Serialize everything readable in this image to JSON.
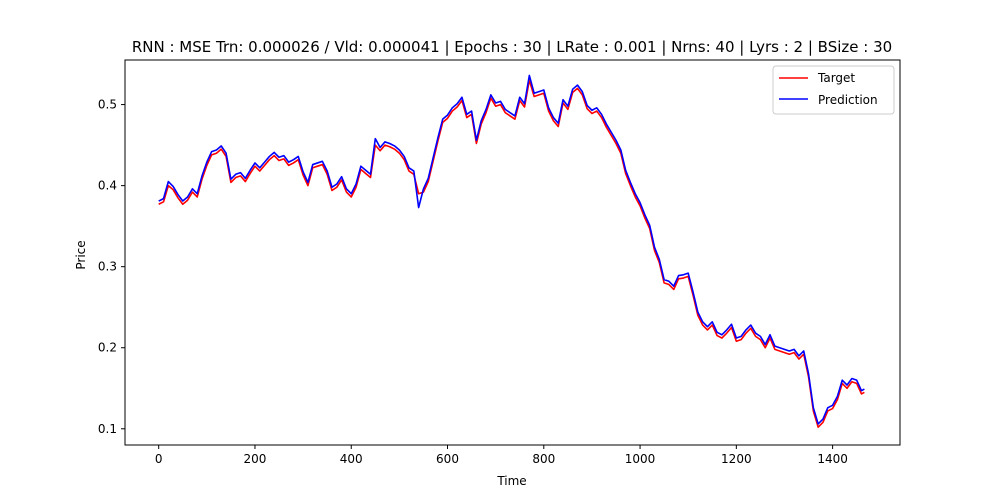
{
  "chart_data": {
    "type": "line",
    "title": "RNN : MSE  Trn: 0.000026 / Vld: 0.000041 | Epochs : 30 | LRate : 0.001 | Nrns: 40 | Lyrs : 2 | BSize : 30",
    "xlabel": "Time",
    "ylabel": "Price",
    "xlim": [
      -70,
      1540
    ],
    "ylim": [
      0.08,
      0.555
    ],
    "xticks": [
      0,
      200,
      400,
      600,
      800,
      1000,
      1200,
      1400
    ],
    "yticks": [
      0.1,
      0.2,
      0.3,
      0.4,
      0.5
    ],
    "ytick_labels": [
      "0.1",
      "0.2",
      "0.3",
      "0.4",
      "0.5"
    ],
    "grid": false,
    "legend_position": "top-right",
    "series": [
      {
        "name": "Target",
        "color": "#ff0000",
        "x": [
          0,
          10,
          20,
          30,
          40,
          50,
          60,
          70,
          80,
          90,
          100,
          110,
          120,
          130,
          140,
          150,
          160,
          170,
          180,
          190,
          200,
          210,
          220,
          230,
          240,
          250,
          260,
          270,
          280,
          290,
          300,
          310,
          320,
          330,
          340,
          350,
          360,
          370,
          380,
          390,
          400,
          410,
          420,
          430,
          440,
          450,
          460,
          470,
          480,
          490,
          500,
          510,
          520,
          530,
          540,
          550,
          560,
          570,
          580,
          590,
          600,
          610,
          620,
          630,
          640,
          650,
          660,
          670,
          680,
          690,
          700,
          710,
          720,
          730,
          740,
          750,
          760,
          770,
          780,
          790,
          800,
          810,
          820,
          830,
          840,
          850,
          860,
          870,
          880,
          890,
          900,
          910,
          920,
          930,
          940,
          950,
          960,
          970,
          980,
          990,
          1000,
          1010,
          1020,
          1030,
          1040,
          1050,
          1060,
          1070,
          1080,
          1090,
          1100,
          1110,
          1120,
          1130,
          1140,
          1150,
          1160,
          1170,
          1180,
          1190,
          1200,
          1210,
          1220,
          1230,
          1240,
          1250,
          1260,
          1270,
          1280,
          1290,
          1300,
          1310,
          1320,
          1330,
          1340,
          1350,
          1360,
          1370,
          1380,
          1390,
          1400,
          1410,
          1420,
          1430,
          1440,
          1450,
          1460,
          1466
        ],
        "values": [
          0.377,
          0.38,
          0.4,
          0.395,
          0.385,
          0.377,
          0.382,
          0.392,
          0.386,
          0.408,
          0.425,
          0.438,
          0.44,
          0.445,
          0.436,
          0.404,
          0.41,
          0.412,
          0.405,
          0.415,
          0.424,
          0.418,
          0.425,
          0.432,
          0.437,
          0.431,
          0.433,
          0.425,
          0.428,
          0.432,
          0.413,
          0.4,
          0.422,
          0.424,
          0.426,
          0.414,
          0.394,
          0.398,
          0.407,
          0.392,
          0.386,
          0.398,
          0.42,
          0.415,
          0.41,
          0.45,
          0.443,
          0.45,
          0.448,
          0.445,
          0.44,
          0.432,
          0.418,
          0.414,
          0.39,
          0.392,
          0.405,
          0.43,
          0.455,
          0.478,
          0.483,
          0.492,
          0.497,
          0.505,
          0.484,
          0.488,
          0.452,
          0.476,
          0.49,
          0.508,
          0.498,
          0.5,
          0.49,
          0.486,
          0.482,
          0.505,
          0.497,
          0.53,
          0.51,
          0.512,
          0.514,
          0.492,
          0.48,
          0.473,
          0.502,
          0.494,
          0.515,
          0.52,
          0.512,
          0.495,
          0.489,
          0.492,
          0.484,
          0.472,
          0.462,
          0.452,
          0.44,
          0.415,
          0.4,
          0.386,
          0.375,
          0.36,
          0.347,
          0.32,
          0.305,
          0.28,
          0.278,
          0.272,
          0.285,
          0.286,
          0.288,
          0.265,
          0.24,
          0.228,
          0.222,
          0.228,
          0.215,
          0.212,
          0.218,
          0.225,
          0.208,
          0.21,
          0.218,
          0.224,
          0.214,
          0.21,
          0.2,
          0.212,
          0.198,
          0.196,
          0.194,
          0.192,
          0.194,
          0.186,
          0.192,
          0.164,
          0.122,
          0.102,
          0.108,
          0.122,
          0.125,
          0.136,
          0.156,
          0.15,
          0.158,
          0.156,
          0.143,
          0.145
        ],
        "offset": 0
      },
      {
        "name": "Prediction",
        "color": "#0000ff",
        "x": [
          0,
          10,
          20,
          30,
          40,
          50,
          60,
          70,
          80,
          90,
          100,
          110,
          120,
          130,
          140,
          150,
          160,
          170,
          180,
          190,
          200,
          210,
          220,
          230,
          240,
          250,
          260,
          270,
          280,
          290,
          300,
          310,
          320,
          330,
          340,
          350,
          360,
          370,
          380,
          390,
          400,
          410,
          420,
          430,
          440,
          450,
          460,
          470,
          480,
          490,
          500,
          510,
          520,
          530,
          540,
          550,
          560,
          570,
          580,
          590,
          600,
          610,
          620,
          630,
          640,
          650,
          660,
          670,
          680,
          690,
          700,
          710,
          720,
          730,
          740,
          750,
          760,
          770,
          780,
          790,
          800,
          810,
          820,
          830,
          840,
          850,
          860,
          870,
          880,
          890,
          900,
          910,
          920,
          930,
          940,
          950,
          960,
          970,
          980,
          990,
          1000,
          1010,
          1020,
          1030,
          1040,
          1050,
          1060,
          1070,
          1080,
          1090,
          1100,
          1110,
          1120,
          1130,
          1140,
          1150,
          1160,
          1170,
          1180,
          1190,
          1200,
          1210,
          1220,
          1230,
          1240,
          1250,
          1260,
          1270,
          1280,
          1290,
          1300,
          1310,
          1320,
          1330,
          1340,
          1350,
          1360,
          1370,
          1380,
          1390,
          1400,
          1410,
          1420,
          1430,
          1440,
          1450,
          1460,
          1466
        ],
        "values": [
          0.381,
          0.384,
          0.405,
          0.399,
          0.389,
          0.381,
          0.386,
          0.396,
          0.39,
          0.412,
          0.429,
          0.442,
          0.444,
          0.449,
          0.44,
          0.408,
          0.414,
          0.416,
          0.409,
          0.419,
          0.428,
          0.422,
          0.429,
          0.436,
          0.441,
          0.435,
          0.437,
          0.429,
          0.432,
          0.436,
          0.417,
          0.404,
          0.426,
          0.428,
          0.43,
          0.418,
          0.398,
          0.402,
          0.411,
          0.396,
          0.39,
          0.402,
          0.424,
          0.419,
          0.414,
          0.458,
          0.447,
          0.454,
          0.452,
          0.449,
          0.444,
          0.436,
          0.422,
          0.418,
          0.373,
          0.396,
          0.409,
          0.434,
          0.459,
          0.482,
          0.487,
          0.496,
          0.501,
          0.509,
          0.488,
          0.492,
          0.456,
          0.48,
          0.494,
          0.512,
          0.502,
          0.504,
          0.494,
          0.49,
          0.486,
          0.509,
          0.501,
          0.536,
          0.514,
          0.516,
          0.518,
          0.496,
          0.484,
          0.477,
          0.506,
          0.498,
          0.519,
          0.524,
          0.516,
          0.499,
          0.493,
          0.496,
          0.488,
          0.476,
          0.466,
          0.456,
          0.444,
          0.419,
          0.404,
          0.39,
          0.379,
          0.364,
          0.351,
          0.324,
          0.309,
          0.284,
          0.282,
          0.276,
          0.289,
          0.29,
          0.292,
          0.269,
          0.244,
          0.232,
          0.226,
          0.232,
          0.219,
          0.216,
          0.222,
          0.229,
          0.212,
          0.214,
          0.222,
          0.228,
          0.218,
          0.214,
          0.204,
          0.216,
          0.202,
          0.2,
          0.198,
          0.196,
          0.198,
          0.19,
          0.196,
          0.168,
          0.126,
          0.106,
          0.112,
          0.126,
          0.129,
          0.14,
          0.16,
          0.154,
          0.162,
          0.16,
          0.147,
          0.149
        ],
        "offset": 0
      }
    ]
  }
}
